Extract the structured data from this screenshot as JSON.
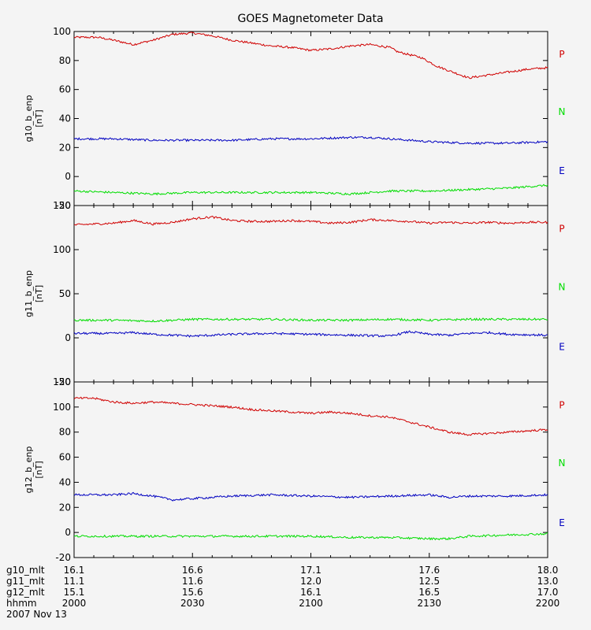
{
  "title": "GOES Magnetometer Data",
  "colors": {
    "P": "#d00000",
    "N": "#00dd00",
    "E": "#0000c0",
    "axis": "#000000",
    "bg": "#f4f4f4"
  },
  "legend": [
    "P",
    "N",
    "E"
  ],
  "chart_data": [
    {
      "type": "line",
      "ylabel": "g10_b_enp",
      "yunit": "[nT]",
      "ylim": [
        -20,
        100
      ],
      "yticks": [
        -20,
        0,
        20,
        40,
        60,
        80,
        100
      ],
      "series": [
        {
          "name": "P",
          "color_key": "P",
          "x": [
            0,
            6,
            10,
            15,
            20,
            25,
            30,
            35,
            40,
            45,
            50,
            55,
            60,
            65,
            70,
            75,
            80,
            82,
            88,
            92,
            96,
            100,
            105,
            110,
            115,
            120
          ],
          "y": [
            96,
            96,
            94,
            91,
            94,
            98,
            99,
            97,
            94,
            92,
            90,
            89,
            87,
            88,
            90,
            91,
            89,
            86,
            82,
            76,
            72,
            68,
            70,
            72,
            74,
            75
          ]
        },
        {
          "name": "E",
          "color_key": "E",
          "x": [
            0,
            10,
            20,
            30,
            40,
            50,
            60,
            70,
            75,
            80,
            90,
            100,
            110,
            120
          ],
          "y": [
            26,
            26,
            25,
            25,
            25,
            26,
            26,
            27,
            27,
            26,
            24,
            23,
            23,
            24
          ]
        },
        {
          "name": "N",
          "color_key": "N",
          "x": [
            0,
            10,
            20,
            30,
            40,
            50,
            60,
            70,
            75,
            80,
            90,
            100,
            110,
            120
          ],
          "y": [
            -10,
            -11,
            -12,
            -11,
            -11,
            -11,
            -11,
            -12,
            -11,
            -10,
            -10,
            -9,
            -8,
            -6
          ]
        }
      ]
    },
    {
      "type": "line",
      "ylabel": "g11_b_enp",
      "yunit": "[nT]",
      "ylim": [
        -50,
        150
      ],
      "yticks": [
        -50,
        0,
        50,
        100,
        150
      ],
      "series": [
        {
          "name": "P",
          "color_key": "P",
          "x": [
            0,
            10,
            15,
            20,
            25,
            30,
            35,
            40,
            45,
            50,
            55,
            60,
            65,
            70,
            75,
            80,
            85,
            90,
            95,
            100,
            105,
            110,
            115,
            120
          ],
          "y": [
            128,
            130,
            133,
            129,
            131,
            135,
            137,
            133,
            132,
            132,
            133,
            132,
            130,
            131,
            134,
            133,
            132,
            130,
            131,
            130,
            131,
            130,
            131,
            131
          ]
        },
        {
          "name": "N",
          "color_key": "N",
          "x": [
            0,
            10,
            20,
            30,
            40,
            50,
            60,
            70,
            80,
            90,
            100,
            110,
            120
          ],
          "y": [
            20,
            20,
            19,
            21,
            21,
            21,
            20,
            20,
            21,
            20,
            21,
            21,
            21
          ]
        },
        {
          "name": "E",
          "color_key": "E",
          "x": [
            0,
            10,
            15,
            20,
            30,
            40,
            50,
            60,
            70,
            80,
            85,
            90,
            95,
            100,
            105,
            110,
            120
          ],
          "y": [
            5,
            5,
            6,
            4,
            2,
            4,
            5,
            4,
            3,
            2,
            7,
            4,
            3,
            5,
            6,
            4,
            3
          ]
        }
      ]
    },
    {
      "type": "line",
      "ylabel": "g12_b_enp",
      "yunit": "[nT]",
      "ylim": [
        -20,
        120
      ],
      "yticks": [
        -20,
        0,
        20,
        40,
        60,
        80,
        100,
        120
      ],
      "series": [
        {
          "name": "P",
          "color_key": "P",
          "x": [
            0,
            5,
            10,
            15,
            20,
            25,
            30,
            35,
            40,
            45,
            50,
            55,
            60,
            65,
            70,
            75,
            80,
            85,
            90,
            95,
            100,
            105,
            110,
            115,
            120
          ],
          "y": [
            107,
            107,
            104,
            103,
            104,
            103,
            102,
            101,
            100,
            98,
            97,
            96,
            95,
            96,
            95,
            93,
            92,
            88,
            84,
            80,
            78,
            79,
            80,
            81,
            82
          ]
        },
        {
          "name": "E",
          "color_key": "E",
          "x": [
            0,
            10,
            15,
            20,
            25,
            30,
            40,
            50,
            60,
            70,
            80,
            90,
            95,
            100,
            110,
            120
          ],
          "y": [
            30,
            30,
            31,
            29,
            26,
            27,
            29,
            30,
            29,
            28,
            29,
            30,
            28,
            29,
            29,
            30
          ]
        },
        {
          "name": "N",
          "color_key": "N",
          "x": [
            0,
            10,
            20,
            30,
            40,
            50,
            60,
            70,
            80,
            90,
            95,
            100,
            110,
            120
          ],
          "y": [
            -3,
            -3,
            -3,
            -3,
            -3,
            -3,
            -3,
            -4,
            -4,
            -5,
            -5,
            -3,
            -2,
            -1
          ]
        }
      ]
    }
  ],
  "x_axis": {
    "ticks_minutes": [
      0,
      30,
      60,
      90,
      120
    ],
    "rows": [
      {
        "label": "g10_mlt",
        "values": [
          "16.1",
          "16.6",
          "17.1",
          "17.6",
          "18.0"
        ]
      },
      {
        "label": "g11_mlt",
        "values": [
          "11.1",
          "11.6",
          "12.0",
          "12.5",
          "13.0"
        ]
      },
      {
        "label": "g12_mlt",
        "values": [
          "15.1",
          "15.6",
          "16.1",
          "16.5",
          "17.0"
        ]
      },
      {
        "label": "hhmm",
        "values": [
          "2000",
          "2030",
          "2100",
          "2130",
          "2200"
        ]
      }
    ],
    "date": "2007 Nov 13"
  }
}
